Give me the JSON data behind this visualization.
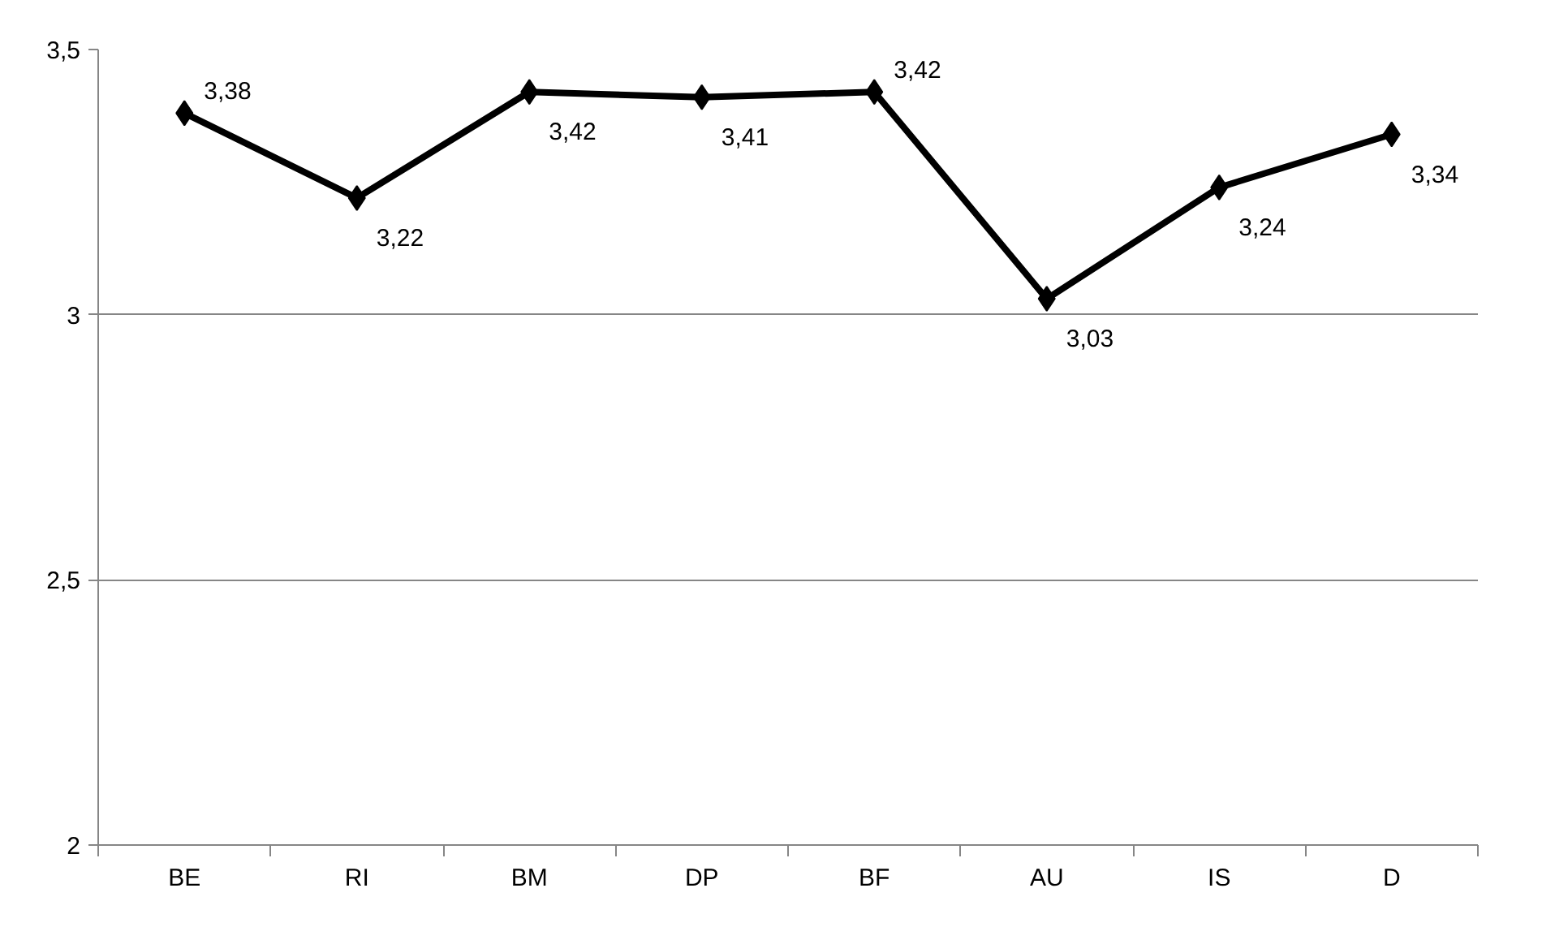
{
  "chart_data": {
    "type": "line",
    "categories": [
      "BE",
      "RI",
      "BM",
      "DP",
      "BF",
      "AU",
      "IS",
      "D"
    ],
    "series": [
      {
        "color": "#000000",
        "values": [
          3.38,
          3.22,
          3.42,
          3.41,
          3.42,
          3.03,
          3.24,
          3.34
        ],
        "value_labels": [
          "3,38",
          "3,22",
          "3,42",
          "3,41",
          "3,42",
          "3,03",
          "3,24",
          "3,34"
        ]
      }
    ],
    "ylim": [
      2,
      3.5
    ],
    "yticks": [
      {
        "value": 2,
        "label": "2"
      },
      {
        "value": 2.5,
        "label": "2,5"
      },
      {
        "value": 3,
        "label": "3"
      },
      {
        "value": 3.5,
        "label": "3,5"
      }
    ],
    "grid": "y",
    "marker": "diamond",
    "line_style": "solid"
  }
}
